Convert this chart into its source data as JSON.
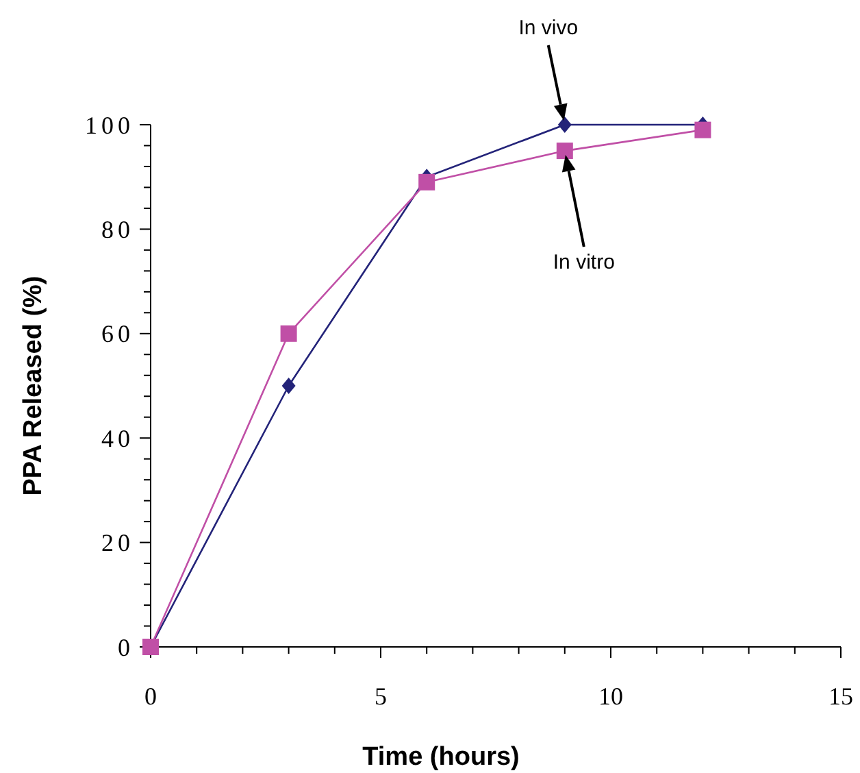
{
  "chart_data": {
    "type": "line",
    "xlabel": "Time (hours)",
    "ylabel": "PPA Released (%)",
    "x": [
      0,
      3,
      6,
      9,
      12
    ],
    "series": [
      {
        "name": "In vivo",
        "color": "#232379",
        "values": [
          0,
          50,
          90,
          100,
          100
        ],
        "marker": "diamond"
      },
      {
        "name": "In vitro",
        "color": "#c04fa6",
        "values": [
          0,
          60,
          89,
          95,
          99
        ],
        "marker": "square"
      }
    ],
    "xlim": [
      0,
      15
    ],
    "ylim": [
      0,
      100
    ],
    "xticks": [
      0,
      {
        "value": 1,
        "label": null
      },
      {
        "value": 2,
        "label": null
      },
      {
        "value": 3,
        "label": null
      },
      {
        "value": 4,
        "label": null
      },
      5,
      {
        "value": 6,
        "label": null
      },
      {
        "value": 7,
        "label": null
      },
      {
        "value": 8,
        "label": null
      },
      {
        "value": 9,
        "label": null
      },
      10,
      {
        "value": 11,
        "label": null
      },
      {
        "value": 12,
        "label": null
      },
      {
        "value": 13,
        "label": null
      },
      {
        "value": 14,
        "label": null
      },
      15
    ],
    "yticks": [
      0,
      {
        "value": 4,
        "label": null
      },
      {
        "value": 8,
        "label": null
      },
      {
        "value": 12,
        "label": null
      },
      {
        "value": 16,
        "label": null
      },
      20,
      {
        "value": 24,
        "label": null
      },
      {
        "value": 28,
        "label": null
      },
      {
        "value": 32,
        "label": null
      },
      {
        "value": 36,
        "label": null
      },
      40,
      {
        "value": 44,
        "label": null
      },
      {
        "value": 48,
        "label": null
      },
      {
        "value": 52,
        "label": null
      },
      {
        "value": 56,
        "label": null
      },
      60,
      {
        "value": 64,
        "label": null
      },
      {
        "value": 68,
        "label": null
      },
      {
        "value": 72,
        "label": null
      },
      {
        "value": 76,
        "label": null
      },
      80,
      {
        "value": 84,
        "label": null
      },
      {
        "value": 88,
        "label": null
      },
      {
        "value": 92,
        "label": null
      },
      {
        "value": 96,
        "label": null
      },
      100
    ],
    "grid": false,
    "line_style": "solid"
  }
}
